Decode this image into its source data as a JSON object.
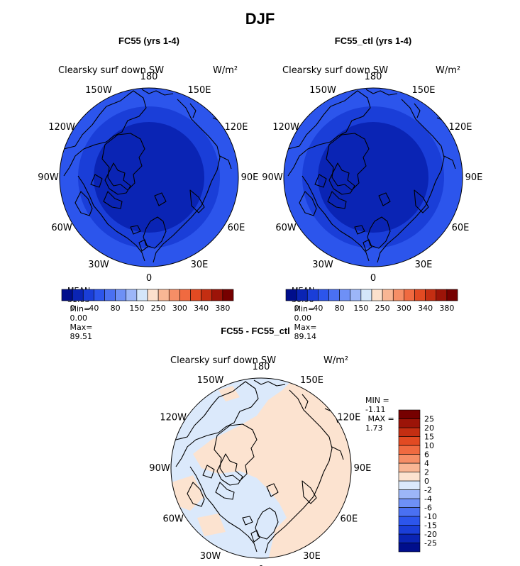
{
  "page_title": "DJF",
  "panels": [
    {
      "title": "FC55 (yrs 1-4)",
      "variable": "Clearsky surf down SW",
      "units": "W/m²",
      "stats": {
        "mean_label": "MEAN=",
        "mean": "31.03",
        "min_label": "Min=",
        "min": "0.00",
        "max_label": "Max=",
        "max": "89.51"
      }
    },
    {
      "title": "FC55_ctl (yrs 1-4)",
      "variable": "Clearsky surf down SW",
      "units": "W/m²",
      "stats": {
        "mean_label": "MEAN=",
        "mean": "30.96",
        "min_label": "Min=",
        "min": "0.00",
        "max_label": "Max=",
        "max": "89.14"
      }
    },
    {
      "title": "FC55 - FC55_ctl",
      "variable": "Clearsky surf down SW",
      "units": "W/m²",
      "stats": {
        "min_label": "MIN =",
        "min": "-1.11",
        "max_label": "MAX =",
        "max": "1.73"
      }
    }
  ],
  "lon_labels": [
    "180",
    "150E",
    "120E",
    "90E",
    "60E",
    "30E",
    "0",
    "30W",
    "60W",
    "90W",
    "120W",
    "150W"
  ],
  "abs_colorbar": {
    "colors": [
      "#000e8c",
      "#0a24b4",
      "#1a3ed8",
      "#2c55ec",
      "#4a70f2",
      "#6e90f6",
      "#9cb6f8",
      "#d4e6fa",
      "#fce0cc",
      "#f9b694",
      "#f68e66",
      "#f06a40",
      "#e24a22",
      "#c42e12",
      "#9c1408",
      "#760000"
    ],
    "tick_labels": [
      "0",
      "40",
      "80",
      "150",
      "250",
      "300",
      "340",
      "380"
    ]
  },
  "diff_colorbar": {
    "colors": [
      "#000e8c",
      "#0a24b4",
      "#1a3ed8",
      "#2c55ec",
      "#4a70f2",
      "#6e90f6",
      "#9cb6f8",
      "#dbe9fb",
      "#fce3d0",
      "#f9b694",
      "#f68e66",
      "#f06a40",
      "#e24a22",
      "#c42e12",
      "#9c1408",
      "#760000"
    ],
    "tick_labels": [
      "-25",
      "-20",
      "-15",
      "-10",
      "-6",
      "-4",
      "-2",
      "0",
      "2",
      "4",
      "6",
      "10",
      "15",
      "20",
      "25"
    ]
  },
  "map_data": {
    "projection": "north-polar-stereographic",
    "field_abs_rings_colors": [
      "#2c55ec",
      "#1a3ed8",
      "#0a24b4"
    ],
    "diff_colors": {
      "positive": "#fce3d0",
      "negative": "#dbe9fb"
    }
  }
}
